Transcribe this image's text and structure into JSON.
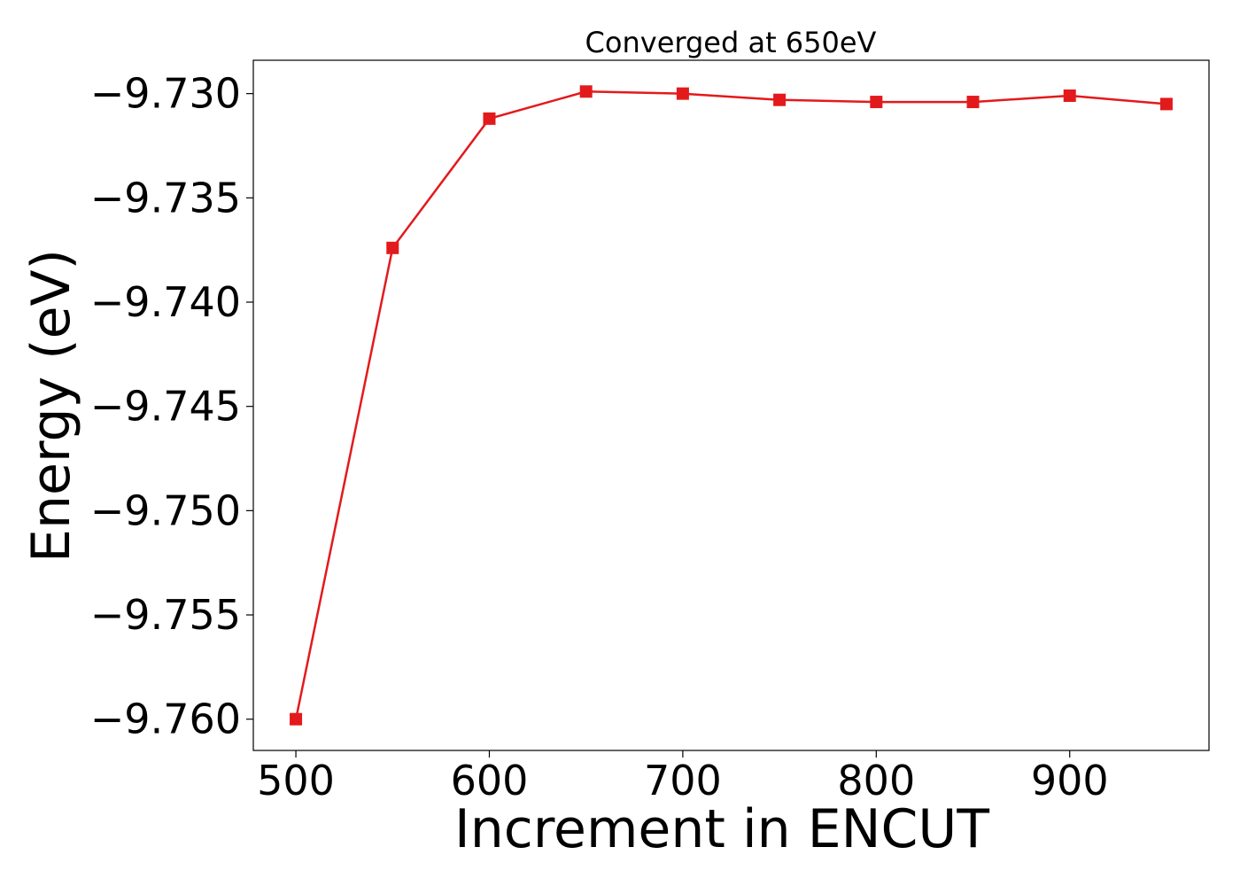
{
  "chart_data": {
    "type": "line",
    "title": "Converged at 650eV",
    "xlabel": "Increment in ENCUT",
    "ylabel": "Energy (eV)",
    "xlim": [
      478,
      972
    ],
    "ylim": [
      -9.7615,
      -9.7284
    ],
    "xticks": [
      500,
      600,
      700,
      800,
      900
    ],
    "xtick_labels": [
      "500",
      "600",
      "700",
      "800",
      "900"
    ],
    "yticks": [
      -9.76,
      -9.755,
      -9.75,
      -9.745,
      -9.74,
      -9.735,
      -9.73
    ],
    "ytick_labels": [
      "−9.760",
      "−9.755",
      "−9.750",
      "−9.745",
      "−9.740",
      "−9.735",
      "−9.730"
    ],
    "grid": false,
    "legend": "none",
    "series": [
      {
        "color": "#e31a1c",
        "marker": "square",
        "x": [
          500,
          550,
          600,
          650,
          700,
          750,
          800,
          850,
          900,
          950
        ],
        "y": [
          -9.76,
          -9.7374,
          -9.7312,
          -9.7299,
          -9.73,
          -9.7303,
          -9.7304,
          -9.7304,
          -9.7301,
          -9.7305
        ]
      }
    ]
  }
}
